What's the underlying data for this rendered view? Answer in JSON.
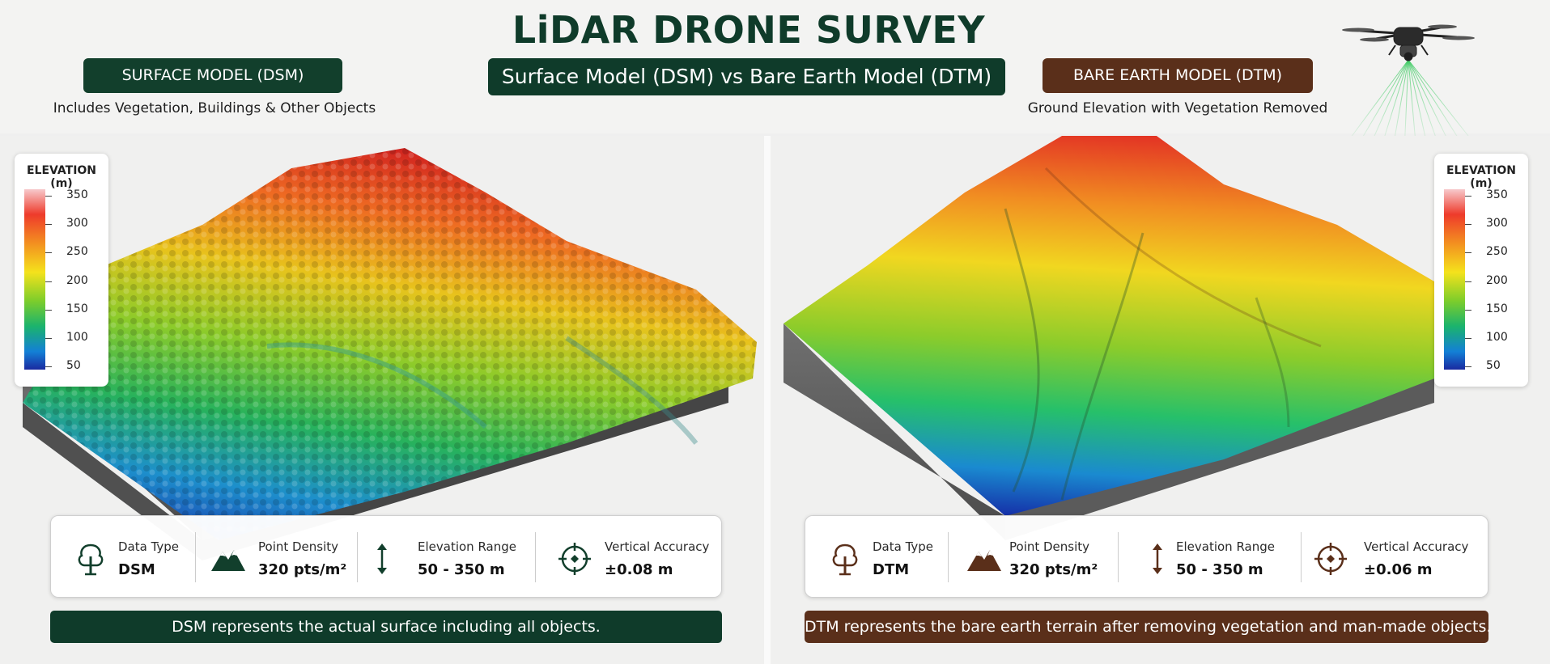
{
  "header": {
    "title": "LiDAR DRONE SURVEY",
    "subtitle": "Surface Model (DSM) vs Bare Earth Model (DTM)"
  },
  "dsm": {
    "badge": "SURFACE MODEL (DSM)",
    "description": "Includes Vegetation, Buildings & Other Objects",
    "legend": {
      "title": "ELEVATION (m)",
      "ticks": [
        "350",
        "300",
        "250",
        "200",
        "150",
        "100",
        "50"
      ]
    },
    "stats": [
      {
        "icon": "tree-icon",
        "label": "Data Type",
        "value": "DSM"
      },
      {
        "icon": "mountain-icon",
        "label": "Point Density",
        "value": "320 pts/m²"
      },
      {
        "icon": "vertical-arrows-icon",
        "label": "Elevation Range",
        "value": "50 - 350 m"
      },
      {
        "icon": "crosshair-icon",
        "label": "Vertical Accuracy",
        "value": "±0.08 m"
      }
    ],
    "caption": "DSM represents the actual surface including all objects.",
    "accent": "#0f3b2a"
  },
  "dtm": {
    "badge": "BARE EARTH MODEL (DTM)",
    "description": "Ground Elevation with Vegetation Removed",
    "legend": {
      "title": "ELEVATION (m)",
      "ticks": [
        "350",
        "300",
        "250",
        "200",
        "150",
        "100",
        "50"
      ]
    },
    "stats": [
      {
        "icon": "tree-icon",
        "label": "Data Type",
        "value": "DTM"
      },
      {
        "icon": "mountain-icon",
        "label": "Point Density",
        "value": "320 pts/m²"
      },
      {
        "icon": "vertical-arrows-icon",
        "label": "Elevation Range",
        "value": "50 - 350 m"
      },
      {
        "icon": "crosshair-icon",
        "label": "Vertical Accuracy",
        "value": "±0.06 m"
      }
    ],
    "caption": "DTM represents the bare earth terrain after removing vegetation and man-made objects.",
    "accent": "#5a2f1a"
  },
  "colors": {
    "dsm_green": "#0f3b2a",
    "dtm_brown": "#5a2f1a",
    "ramp_high": "#ee3b2b",
    "ramp_mid": "#f4e21c",
    "ramp_low": "#1a2aa0"
  }
}
